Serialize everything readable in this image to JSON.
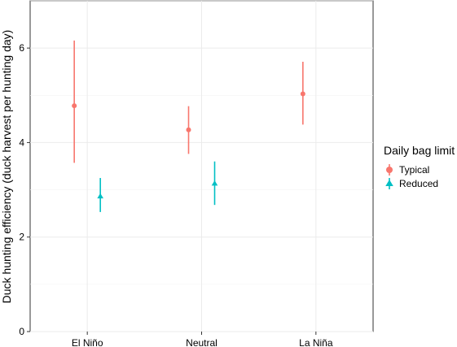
{
  "chart_data": {
    "type": "scatter",
    "subtype": "point-with-error-bars",
    "title": "",
    "xlabel": "",
    "ylabel": "Duck hunting efficiency (duck harvest per hunting day)",
    "categories": [
      "El Niño",
      "Neutral",
      "La Niña"
    ],
    "ylim": [
      0,
      7
    ],
    "yticks": [
      "0",
      "2",
      "4",
      "6"
    ],
    "grid": true,
    "legend": {
      "title": "Daily bag limit",
      "position": "right"
    },
    "series": [
      {
        "name": "Typical",
        "color": "#F8766D",
        "marker": "circle",
        "points": [
          {
            "category": "El Niño",
            "value": 4.78,
            "lower": 3.57,
            "upper": 6.16
          },
          {
            "category": "Neutral",
            "value": 4.27,
            "lower": 3.76,
            "upper": 4.77
          },
          {
            "category": "La Niña",
            "value": 5.03,
            "lower": 4.38,
            "upper": 5.71
          }
        ]
      },
      {
        "name": "Reduced",
        "color": "#00BFC4",
        "marker": "triangle",
        "points": [
          {
            "category": "El Niño",
            "value": 2.86,
            "lower": 2.53,
            "upper": 3.25
          },
          {
            "category": "Neutral",
            "value": 3.13,
            "lower": 2.68,
            "upper": 3.6
          }
        ]
      }
    ]
  }
}
